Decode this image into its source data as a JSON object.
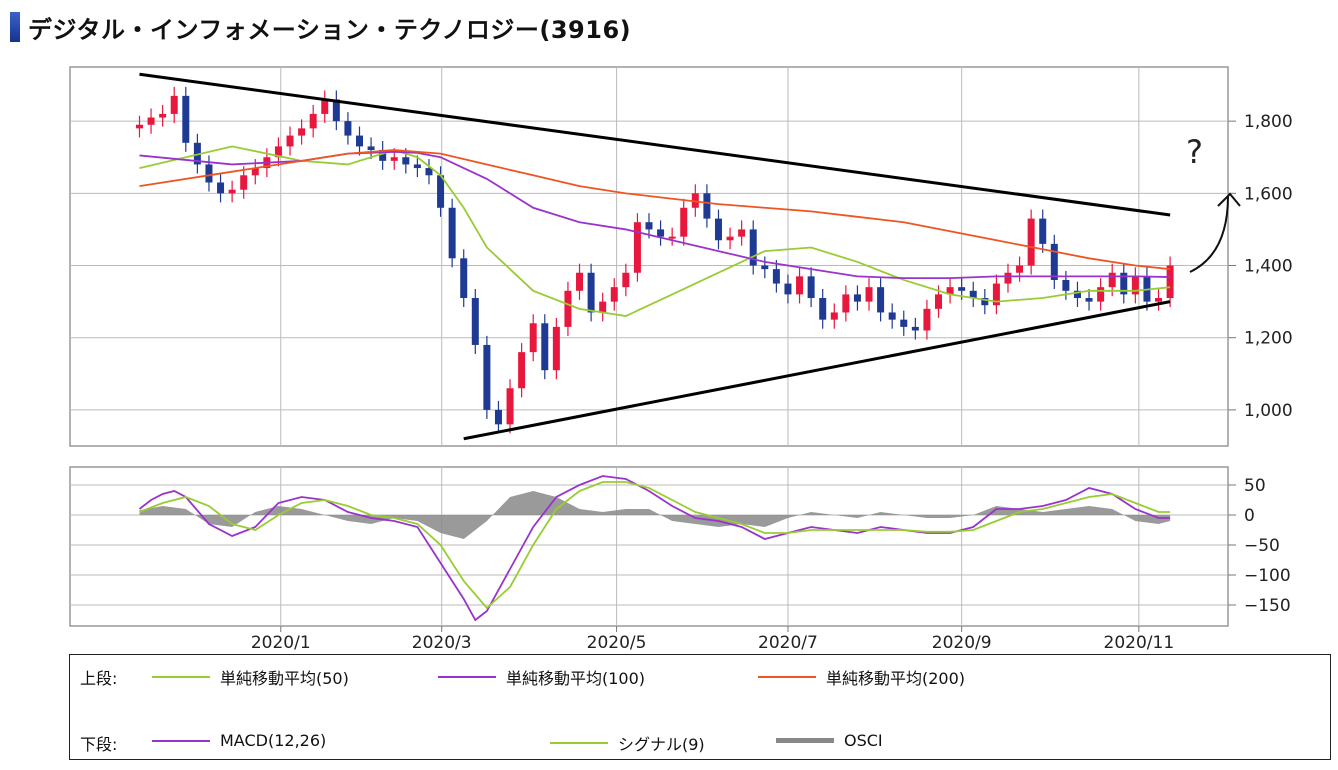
{
  "title": "デジタル・インフォメーション・テクノロジー(3916)",
  "annotation_text": "?",
  "chart_data": [
    {
      "type": "line",
      "panel": "price",
      "ylim": [
        900,
        1950
      ],
      "yticks": [
        1000,
        1200,
        1400,
        1600,
        1800
      ],
      "ytick_labels": [
        "1,000",
        "1,200",
        "1,400",
        "1,600",
        "1,800"
      ],
      "x_range": [
        0,
        100
      ],
      "x_tick_pos": [
        18.2,
        32.1,
        47.2,
        62.0,
        77.0,
        92.3
      ],
      "xtick_labels": [
        "2020/1",
        "2020/3",
        "2020/5",
        "2020/7",
        "2020/9",
        "2020/11"
      ],
      "grid": true,
      "close_series": {
        "x": [
          6,
          7,
          8,
          9,
          10,
          11,
          12,
          13,
          14,
          15,
          16,
          17,
          18,
          19,
          20,
          21,
          22,
          23,
          24,
          25,
          26,
          27,
          28,
          29,
          30,
          31,
          32,
          33,
          34,
          35,
          36,
          37,
          38,
          39,
          40,
          41,
          42,
          43,
          44,
          45,
          46,
          47,
          48,
          49,
          50,
          51,
          52,
          53,
          54,
          55,
          56,
          57,
          58,
          59,
          60,
          61,
          62,
          63,
          64,
          65,
          66,
          67,
          68,
          69,
          70,
          71,
          72,
          73,
          74,
          75,
          76,
          77,
          78,
          79,
          80,
          81,
          82,
          83,
          84,
          85,
          86,
          87,
          88,
          89,
          90,
          91,
          92,
          93,
          94,
          95
        ],
        "values": [
          1790,
          1810,
          1820,
          1870,
          1740,
          1680,
          1630,
          1600,
          1610,
          1650,
          1670,
          1700,
          1730,
          1760,
          1780,
          1820,
          1860,
          1800,
          1760,
          1730,
          1720,
          1690,
          1700,
          1680,
          1670,
          1650,
          1560,
          1420,
          1310,
          1180,
          1000,
          960,
          1060,
          1160,
          1240,
          1110,
          1230,
          1330,
          1380,
          1270,
          1300,
          1340,
          1380,
          1520,
          1500,
          1480,
          1480,
          1560,
          1600,
          1530,
          1470,
          1480,
          1500,
          1400,
          1390,
          1350,
          1320,
          1370,
          1310,
          1250,
          1270,
          1320,
          1300,
          1340,
          1270,
          1250,
          1230,
          1220,
          1280,
          1320,
          1340,
          1330,
          1310,
          1290,
          1350,
          1380,
          1400,
          1530,
          1460,
          1360,
          1330,
          1310,
          1300,
          1340,
          1380,
          1320,
          1370,
          1300,
          1310,
          1400
        ]
      },
      "series": [
        {
          "name": "単純移動平均(50)",
          "color": "#99cc33",
          "x": [
            6,
            14,
            20,
            24,
            28,
            30,
            32,
            34,
            36,
            40,
            44,
            48,
            52,
            56,
            60,
            64,
            68,
            72,
            76,
            80,
            84,
            88,
            92,
            95
          ],
          "values": [
            1670,
            1730,
            1690,
            1680,
            1720,
            1700,
            1650,
            1560,
            1450,
            1330,
            1280,
            1260,
            1320,
            1380,
            1440,
            1450,
            1410,
            1360,
            1320,
            1300,
            1310,
            1330,
            1330,
            1340
          ]
        },
        {
          "name": "単純移動平均(100)",
          "color": "#9933cc",
          "x": [
            6,
            14,
            20,
            24,
            28,
            30,
            32,
            36,
            40,
            44,
            48,
            52,
            56,
            60,
            64,
            68,
            72,
            76,
            80,
            84,
            88,
            92,
            95
          ],
          "values": [
            1705,
            1680,
            1690,
            1710,
            1715,
            1712,
            1700,
            1640,
            1560,
            1520,
            1500,
            1470,
            1440,
            1410,
            1390,
            1370,
            1365,
            1365,
            1370,
            1370,
            1370,
            1370,
            1368
          ]
        },
        {
          "name": "単純移動平均(200)",
          "color": "#ee5522",
          "x": [
            6,
            14,
            20,
            24,
            28,
            32,
            36,
            40,
            44,
            48,
            52,
            56,
            60,
            64,
            68,
            72,
            76,
            80,
            84,
            88,
            92,
            95
          ],
          "values": [
            1620,
            1660,
            1690,
            1710,
            1720,
            1710,
            1680,
            1650,
            1620,
            1600,
            1585,
            1570,
            1560,
            1550,
            1535,
            1520,
            1495,
            1470,
            1445,
            1420,
            1400,
            1390
          ]
        }
      ],
      "trend_lines": [
        {
          "x": [
            6,
            95
          ],
          "values": [
            1930,
            1540
          ]
        },
        {
          "x": [
            34,
            95
          ],
          "values": [
            920,
            1300
          ]
        }
      ]
    },
    {
      "type": "line",
      "panel": "macd",
      "ylim": [
        -185,
        80
      ],
      "yticks": [
        50,
        0,
        -50,
        -100,
        -150
      ],
      "ytick_labels": [
        "50",
        "0",
        "−50",
        "−100",
        "−150"
      ],
      "x_range": [
        0,
        100
      ],
      "series": [
        {
          "name": "MACD(12,26)",
          "color": "#9933cc",
          "x": [
            6,
            7,
            8,
            9,
            10,
            12,
            14,
            16,
            18,
            20,
            22,
            24,
            26,
            28,
            30,
            32,
            34,
            35,
            36,
            38,
            40,
            42,
            44,
            46,
            48,
            50,
            52,
            54,
            56,
            58,
            60,
            62,
            64,
            66,
            68,
            70,
            72,
            74,
            76,
            78,
            80,
            82,
            84,
            86,
            88,
            90,
            92,
            94,
            95
          ],
          "values": [
            10,
            25,
            35,
            40,
            30,
            -15,
            -35,
            -20,
            20,
            30,
            25,
            5,
            -5,
            -10,
            -20,
            -80,
            -140,
            -175,
            -160,
            -90,
            -20,
            30,
            50,
            65,
            60,
            40,
            15,
            -5,
            -10,
            -20,
            -40,
            -30,
            -20,
            -25,
            -30,
            -20,
            -25,
            -30,
            -30,
            -20,
            10,
            10,
            15,
            25,
            45,
            35,
            10,
            -5,
            -5
          ]
        },
        {
          "name": "シグナル(9)",
          "color": "#99cc33",
          "x": [
            6,
            8,
            10,
            12,
            14,
            16,
            18,
            20,
            22,
            24,
            26,
            28,
            30,
            32,
            34,
            36,
            38,
            40,
            42,
            44,
            46,
            48,
            50,
            52,
            54,
            56,
            58,
            60,
            62,
            64,
            66,
            68,
            70,
            72,
            74,
            76,
            78,
            80,
            82,
            84,
            86,
            88,
            90,
            92,
            94,
            95
          ],
          "values": [
            5,
            20,
            30,
            15,
            -15,
            -25,
            0,
            20,
            25,
            15,
            0,
            -5,
            -15,
            -50,
            -110,
            -155,
            -120,
            -50,
            10,
            40,
            55,
            55,
            45,
            25,
            5,
            -5,
            -15,
            -30,
            -30,
            -25,
            -25,
            -25,
            -25,
            -25,
            -28,
            -28,
            -25,
            -10,
            5,
            10,
            20,
            30,
            35,
            20,
            5,
            5
          ]
        },
        {
          "name": "OSCI",
          "color": "#888888",
          "x": [
            6,
            8,
            10,
            12,
            14,
            16,
            18,
            20,
            22,
            24,
            26,
            28,
            30,
            32,
            34,
            36,
            38,
            40,
            42,
            44,
            46,
            48,
            50,
            52,
            54,
            56,
            58,
            60,
            62,
            64,
            66,
            68,
            70,
            72,
            74,
            76,
            78,
            80,
            82,
            84,
            86,
            88,
            90,
            92,
            94,
            95
          ],
          "values": [
            8,
            15,
            10,
            -15,
            -20,
            5,
            15,
            10,
            0,
            -10,
            -15,
            -5,
            -10,
            -30,
            -40,
            -10,
            30,
            40,
            30,
            10,
            5,
            10,
            10,
            -10,
            -15,
            -20,
            -15,
            -20,
            -5,
            5,
            0,
            -5,
            5,
            0,
            -5,
            -5,
            0,
            15,
            10,
            5,
            10,
            15,
            10,
            -10,
            -15,
            -10
          ]
        }
      ]
    }
  ],
  "legend": {
    "upper_label": "上段:",
    "lower_label": "下段:",
    "items_upper": [
      {
        "label": "単純移動平均(50)",
        "color": "#99cc33"
      },
      {
        "label": "単純移動平均(100)",
        "color": "#9933cc"
      },
      {
        "label": "単純移動平均(200)",
        "color": "#ee5522"
      }
    ],
    "items_lower": [
      {
        "label": "MACD(12,26)",
        "color": "#9933cc"
      },
      {
        "label": "シグナル(9)",
        "color": "#99cc33"
      },
      {
        "label": "OSCI",
        "color": "#888888"
      }
    ]
  }
}
